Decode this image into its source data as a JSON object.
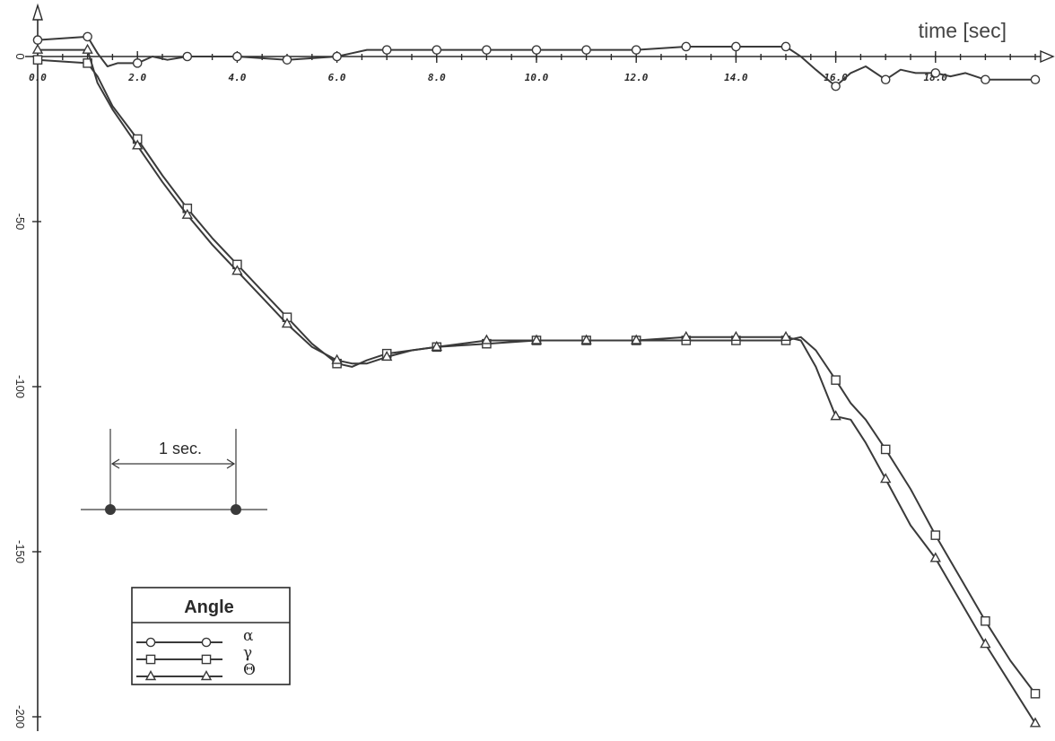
{
  "chart_data": {
    "type": "line",
    "xlabel": "time [sec]",
    "ylabel": "",
    "xlim": [
      0,
      20
    ],
    "ylim": [
      -200,
      10
    ],
    "x_ticks": [
      0,
      2,
      4,
      6,
      8,
      10,
      12,
      14,
      16,
      18
    ],
    "x_tick_labels": [
      "0.0",
      "2.0",
      "4.0",
      "6.0",
      "8.0",
      "10.0",
      "12.0",
      "14.0",
      "16.0",
      "18.0"
    ],
    "y_ticks": [
      0,
      -50,
      -100,
      -150,
      -200
    ],
    "y_tick_labels": [
      "0",
      "-50",
      "-100",
      "-150",
      "-200"
    ],
    "legend": {
      "title": "Angle",
      "position": "bottom-left"
    },
    "annotation": {
      "label": "1 sec.",
      "span_seconds": 1
    },
    "series": [
      {
        "name": "α",
        "marker": "circle",
        "x": [
          0,
          1,
          1.2,
          1.4,
          1.6,
          2,
          2.3,
          2.6,
          3,
          4,
          5,
          6,
          6.3,
          6.6,
          7,
          8,
          9,
          10,
          11,
          12,
          13,
          14,
          15,
          15.3,
          15.6,
          16,
          16.3,
          16.6,
          17,
          17.3,
          17.6,
          18,
          18.3,
          18.6,
          19,
          20
        ],
        "y": [
          5,
          6,
          1,
          -3,
          -2,
          -2,
          0,
          -1,
          0,
          0,
          -1,
          0,
          1,
          2,
          2,
          2,
          2,
          2,
          2,
          2,
          3,
          3,
          3,
          0,
          -4,
          -9,
          -5,
          -3,
          -7,
          -4,
          -5,
          -5,
          -6,
          -5,
          -7,
          -7
        ]
      },
      {
        "name": "γ",
        "marker": "square",
        "x": [
          0,
          1,
          1.2,
          1.5,
          2,
          2.5,
          3,
          3.5,
          4,
          4.5,
          5,
          5.5,
          6,
          6.3,
          6.6,
          7,
          7.5,
          8,
          9,
          10,
          11,
          12,
          13,
          14,
          15,
          15.3,
          15.6,
          16,
          16.3,
          16.6,
          17,
          17.5,
          18,
          18.5,
          19,
          19.5,
          20
        ],
        "y": [
          -1,
          -2,
          -6,
          -15,
          -25,
          -36,
          -46,
          -55,
          -63,
          -71,
          -79,
          -87,
          -93,
          -94,
          -92,
          -90,
          -89,
          -88,
          -87,
          -86,
          -86,
          -86,
          -86,
          -86,
          -86,
          -85,
          -89,
          -98,
          -105,
          -110,
          -119,
          -131,
          -145,
          -158,
          -171,
          -183,
          -193
        ]
      },
      {
        "name": "Θ",
        "marker": "triangle",
        "x": [
          0,
          1,
          1.2,
          1.5,
          2,
          2.5,
          3,
          3.5,
          4,
          4.5,
          5,
          5.5,
          6,
          6.3,
          6.6,
          7,
          7.5,
          8,
          9,
          10,
          11,
          12,
          13,
          14,
          15,
          15.3,
          15.6,
          16,
          16.3,
          16.6,
          17,
          17.5,
          18,
          18.5,
          19,
          19.5,
          20
        ],
        "y": [
          2,
          2,
          -8,
          -16,
          -27,
          -38,
          -48,
          -57,
          -65,
          -73,
          -81,
          -88,
          -92,
          -93,
          -93,
          -91,
          -89,
          -88,
          -86,
          -86,
          -86,
          -86,
          -85,
          -85,
          -85,
          -86,
          -94,
          -109,
          -110,
          -117,
          -128,
          -142,
          -152,
          -165,
          -178,
          -190,
          -202
        ]
      }
    ]
  }
}
